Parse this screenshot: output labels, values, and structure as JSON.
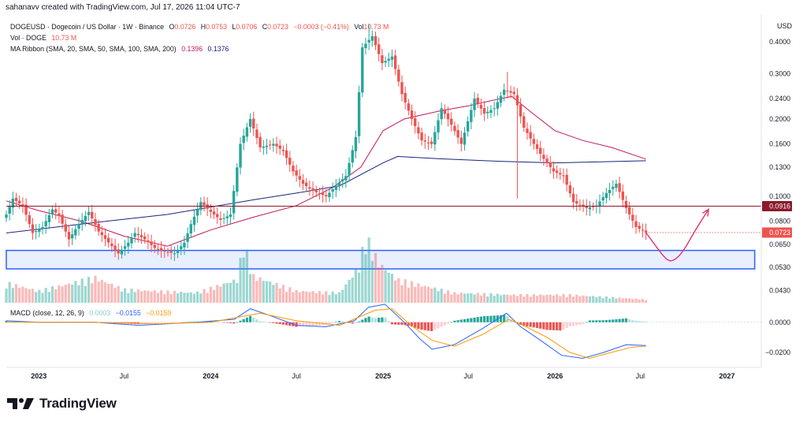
{
  "header": {
    "credit": "sahanavv created with TradingView.com, Jul 17, 2026 11:04 UTC-7"
  },
  "legend": {
    "symbol": "DOGEUSD · Dogecoin / US Dollar · 1W · Binance",
    "o_label": "O",
    "o_value": "0.0726",
    "h_label": "H",
    "h_value": "0.0753",
    "l_label": "L",
    "l_value": "0.0706",
    "c_label": "C",
    "c_value": "0.0723",
    "change": "−0.0003 (−0.41%)",
    "vol_label": "Vol",
    "vol_value": "10.73 M",
    "vol_row_label": "Vol · DOGE",
    "vol_row_value": "10.73 M",
    "ma_label": "MA Ribbon (SMA, 20, SMA, 50, SMA, 100, SMA, 200)",
    "ma_value_1": "0.1396",
    "ma_value_2": "0.1376"
  },
  "macd_legend": {
    "label": "MACD (close, 12, 26, 9)",
    "hist": "0.0003",
    "macd": "−0.0155",
    "signal": "−0.0159"
  },
  "chart_data": {
    "type": "candlestick",
    "symbol": "DOGEUSD",
    "interval": "1W",
    "price_axis": {
      "unit": "USD",
      "scale": "log",
      "ticks": [
        "0.4000",
        "0.3000",
        "0.2400",
        "0.2000",
        "0.1600",
        "0.1300",
        "0.1000",
        "0.0800",
        "0.0650",
        "0.0530",
        "0.0430"
      ],
      "ylim": [
        0.038,
        0.47
      ]
    },
    "macd_axis": {
      "ticks": [
        "0.0000",
        "−0.0200"
      ],
      "ylim": [
        -0.029,
        0.013
      ]
    },
    "time_axis": {
      "range": [
        "2022-10-24",
        "2027-03-15"
      ],
      "labels": [
        {
          "t": "2023-01-01",
          "text": "2023"
        },
        {
          "t": "2023-07-01",
          "text": "Jul"
        },
        {
          "t": "2024-01-01",
          "text": "2024"
        },
        {
          "t": "2024-07-01",
          "text": "Jul"
        },
        {
          "t": "2025-01-01",
          "text": "2025"
        },
        {
          "t": "2025-07-01",
          "text": "Jul"
        },
        {
          "t": "2026-01-01",
          "text": "2026"
        },
        {
          "t": "2026-07-01",
          "text": "Jul"
        },
        {
          "t": "2027-01-01",
          "text": "2027"
        }
      ]
    },
    "price_path": [
      [
        "2022-10-24",
        0.085
      ],
      [
        "2022-11-07",
        0.098
      ],
      [
        "2022-11-28",
        0.092
      ],
      [
        "2022-12-19",
        0.072
      ],
      [
        "2023-01-09",
        0.076
      ],
      [
        "2023-01-30",
        0.089
      ],
      [
        "2023-02-13",
        0.084
      ],
      [
        "2023-03-06",
        0.068
      ],
      [
        "2023-03-27",
        0.078
      ],
      [
        "2023-04-17",
        0.087
      ],
      [
        "2023-05-08",
        0.073
      ],
      [
        "2023-06-05",
        0.064
      ],
      [
        "2023-06-19",
        0.06
      ],
      [
        "2023-07-10",
        0.066
      ],
      [
        "2023-07-24",
        0.072
      ],
      [
        "2023-08-14",
        0.068
      ],
      [
        "2023-09-04",
        0.063
      ],
      [
        "2023-09-25",
        0.061
      ],
      [
        "2023-10-16",
        0.06
      ],
      [
        "2023-11-06",
        0.066
      ],
      [
        "2023-11-20",
        0.078
      ],
      [
        "2023-12-11",
        0.095
      ],
      [
        "2024-01-01",
        0.087
      ],
      [
        "2024-01-22",
        0.081
      ],
      [
        "2024-02-12",
        0.085
      ],
      [
        "2024-03-04",
        0.16
      ],
      [
        "2024-03-25",
        0.2
      ],
      [
        "2024-04-15",
        0.155
      ],
      [
        "2024-05-13",
        0.16
      ],
      [
        "2024-06-03",
        0.15
      ],
      [
        "2024-06-24",
        0.125
      ],
      [
        "2024-07-15",
        0.112
      ],
      [
        "2024-08-05",
        0.105
      ],
      [
        "2024-09-02",
        0.1
      ],
      [
        "2024-09-23",
        0.11
      ],
      [
        "2024-10-14",
        0.12
      ],
      [
        "2024-11-04",
        0.17
      ],
      [
        "2024-11-18",
        0.38
      ],
      [
        "2024-12-09",
        0.42
      ],
      [
        "2024-12-30",
        0.33
      ],
      [
        "2025-01-20",
        0.35
      ],
      [
        "2025-02-10",
        0.25
      ],
      [
        "2025-03-03",
        0.2
      ],
      [
        "2025-03-24",
        0.165
      ],
      [
        "2025-04-14",
        0.16
      ],
      [
        "2025-05-05",
        0.22
      ],
      [
        "2025-05-26",
        0.19
      ],
      [
        "2025-06-16",
        0.16
      ],
      [
        "2025-07-14",
        0.24
      ],
      [
        "2025-08-04",
        0.21
      ],
      [
        "2025-08-25",
        0.22
      ],
      [
        "2025-09-15",
        0.26
      ],
      [
        "2025-10-06",
        0.25
      ],
      [
        "2025-10-27",
        0.185
      ],
      [
        "2025-11-17",
        0.16
      ],
      [
        "2025-12-08",
        0.14
      ],
      [
        "2025-12-29",
        0.125
      ],
      [
        "2026-01-19",
        0.12
      ],
      [
        "2026-02-09",
        0.095
      ],
      [
        "2026-03-09",
        0.09
      ],
      [
        "2026-03-30",
        0.092
      ],
      [
        "2026-04-20",
        0.103
      ],
      [
        "2026-05-11",
        0.112
      ],
      [
        "2026-06-01",
        0.09
      ],
      [
        "2026-06-22",
        0.076
      ],
      [
        "2026-07-13",
        0.0723
      ]
    ],
    "spikes": [
      {
        "t": "2024-12-02",
        "high": 0.47
      },
      {
        "t": "2025-09-22",
        "high": 0.305
      },
      {
        "t": "2025-10-13",
        "low": 0.098
      }
    ],
    "current": {
      "open": 0.0726,
      "high": 0.0753,
      "low": 0.0706,
      "close": 0.0723,
      "change": -0.0003,
      "change_pct": -0.41,
      "volume": "10.73 M"
    },
    "ma_ribbon": {
      "sma_short": {
        "value": 0.1396,
        "path": [
          [
            "2022-10-24",
            0.096
          ],
          [
            "2023-01-01",
            0.088
          ],
          [
            "2023-04-01",
            0.08
          ],
          [
            "2023-07-01",
            0.07
          ],
          [
            "2023-10-01",
            0.064
          ],
          [
            "2024-01-01",
            0.074
          ],
          [
            "2024-04-01",
            0.083
          ],
          [
            "2024-07-01",
            0.092
          ],
          [
            "2024-09-15",
            0.108
          ],
          [
            "2024-11-15",
            0.13
          ],
          [
            "2025-01-01",
            0.18
          ],
          [
            "2025-02-15",
            0.2
          ],
          [
            "2025-05-01",
            0.215
          ],
          [
            "2025-07-01",
            0.225
          ],
          [
            "2025-08-15",
            0.235
          ],
          [
            "2025-10-01",
            0.245
          ],
          [
            "2025-11-15",
            0.21
          ],
          [
            "2026-01-01",
            0.18
          ],
          [
            "2026-03-01",
            0.165
          ],
          [
            "2026-05-01",
            0.155
          ],
          [
            "2026-07-13",
            0.1396
          ]
        ]
      },
      "sma_long": {
        "value": 0.1376,
        "path": [
          [
            "2022-10-24",
            0.072
          ],
          [
            "2023-04-01",
            0.078
          ],
          [
            "2023-10-01",
            0.085
          ],
          [
            "2024-04-01",
            0.097
          ],
          [
            "2024-07-01",
            0.103
          ],
          [
            "2024-10-01",
            0.11
          ],
          [
            "2025-01-01",
            0.135
          ],
          [
            "2025-02-01",
            0.143
          ],
          [
            "2025-05-01",
            0.14
          ],
          [
            "2025-09-01",
            0.137
          ],
          [
            "2026-01-01",
            0.135
          ],
          [
            "2026-07-13",
            0.1376
          ]
        ]
      }
    },
    "volume_envelope": [
      [
        "2022-10-24",
        0.3
      ],
      [
        "2023-01-01",
        0.18
      ],
      [
        "2023-05-01",
        0.38
      ],
      [
        "2023-07-01",
        0.2
      ],
      [
        "2023-12-01",
        0.15
      ],
      [
        "2024-02-26",
        0.35
      ],
      [
        "2024-03-11",
        0.9
      ],
      [
        "2024-04-01",
        0.4
      ],
      [
        "2024-07-01",
        0.18
      ],
      [
        "2024-10-01",
        0.15
      ],
      [
        "2024-11-11",
        0.55
      ],
      [
        "2024-11-25",
        1.0
      ],
      [
        "2024-12-23",
        0.6
      ],
      [
        "2025-02-01",
        0.35
      ],
      [
        "2025-06-01",
        0.15
      ],
      [
        "2025-10-01",
        0.12
      ],
      [
        "2026-02-01",
        0.12
      ],
      [
        "2026-07-13",
        0.05
      ]
    ],
    "macd": {
      "macd_path": [
        [
          "2022-10-24",
          0.001
        ],
        [
          "2023-01-01",
          0.0
        ],
        [
          "2023-05-01",
          0.0
        ],
        [
          "2023-08-01",
          -0.002
        ],
        [
          "2023-12-01",
          0.0
        ],
        [
          "2024-02-20",
          0.002
        ],
        [
          "2024-03-25",
          0.009
        ],
        [
          "2024-05-01",
          0.005
        ],
        [
          "2024-07-01",
          -0.002
        ],
        [
          "2024-09-01",
          -0.003
        ],
        [
          "2024-11-01",
          0.001
        ],
        [
          "2024-12-01",
          0.01
        ],
        [
          "2025-01-05",
          0.012
        ],
        [
          "2025-02-15",
          0.0
        ],
        [
          "2025-03-20",
          -0.011
        ],
        [
          "2025-04-15",
          -0.018
        ],
        [
          "2025-06-01",
          -0.015
        ],
        [
          "2025-08-01",
          -0.004
        ],
        [
          "2025-09-20",
          0.006
        ],
        [
          "2025-10-20",
          -0.003
        ],
        [
          "2025-12-01",
          -0.012
        ],
        [
          "2026-01-15",
          -0.022
        ],
        [
          "2026-03-01",
          -0.024
        ],
        [
          "2026-04-15",
          -0.02
        ],
        [
          "2026-06-01",
          -0.015
        ],
        [
          "2026-07-13",
          -0.0155
        ]
      ],
      "signal_path": [
        [
          "2022-10-24",
          0.0
        ],
        [
          "2023-05-01",
          0.0
        ],
        [
          "2023-09-01",
          -0.001
        ],
        [
          "2024-01-01",
          0.0
        ],
        [
          "2024-04-15",
          0.006
        ],
        [
          "2024-07-01",
          0.001
        ],
        [
          "2024-10-01",
          -0.002
        ],
        [
          "2024-12-15",
          0.008
        ],
        [
          "2025-01-20",
          0.009
        ],
        [
          "2025-03-01",
          -0.002
        ],
        [
          "2025-04-15",
          -0.012
        ],
        [
          "2025-06-01",
          -0.016
        ],
        [
          "2025-08-01",
          -0.008
        ],
        [
          "2025-09-25",
          0.002
        ],
        [
          "2025-11-01",
          -0.003
        ],
        [
          "2025-12-15",
          -0.01
        ],
        [
          "2026-02-01",
          -0.02
        ],
        [
          "2026-03-15",
          -0.024
        ],
        [
          "2026-05-01",
          -0.02
        ],
        [
          "2026-06-15",
          -0.0165
        ],
        [
          "2026-07-13",
          -0.0159
        ]
      ],
      "hist": 0.0003
    },
    "annotations": {
      "resistance_line": {
        "price": 0.0916,
        "label": "0.0916",
        "color": "#8b1a2b"
      },
      "last_price_line": {
        "price": 0.0723,
        "label": "0.0723",
        "color": "#ef5350"
      },
      "support_zone": {
        "from": 0.0522,
        "to": 0.0616,
        "t_start": "2022-10-24",
        "t_end": "2027-03-01",
        "color": "#2962ff"
      },
      "projection_path": [
        [
          "2026-07-13",
          0.0723
        ],
        [
          "2026-08-03",
          0.064
        ],
        [
          "2026-08-24",
          0.057
        ],
        [
          "2026-09-07",
          0.0556
        ],
        [
          "2026-09-28",
          0.06
        ],
        [
          "2026-10-26",
          0.074
        ],
        [
          "2026-11-23",
          0.089
        ]
      ],
      "projection_color": "#e0336e"
    }
  },
  "footer": {
    "brand": "TradingView"
  }
}
